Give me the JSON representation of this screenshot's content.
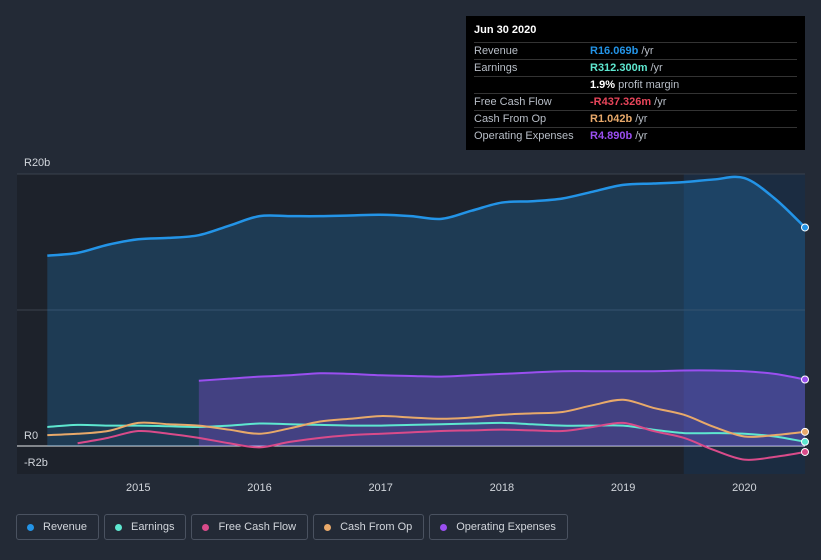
{
  "chart_data": {
    "type": "area",
    "title": "",
    "currency": "R",
    "x": [
      2014.25,
      2014.5,
      2014.75,
      2015.0,
      2015.25,
      2015.5,
      2015.75,
      2016.0,
      2016.25,
      2016.5,
      2016.75,
      2017.0,
      2017.25,
      2017.5,
      2017.75,
      2018.0,
      2018.25,
      2018.5,
      2018.75,
      2019.0,
      2019.25,
      2019.5,
      2019.75,
      2020.0,
      2020.25,
      2020.5
    ],
    "xlim": [
      2014.0,
      2020.5
    ],
    "ylim": [
      -2.0,
      20.0
    ],
    "y_ticks": [
      {
        "label": "R20b",
        "value": 20
      },
      {
        "label": "R0",
        "value": 0
      },
      {
        "label": "-R2b",
        "value": -2
      }
    ],
    "x_ticks": [
      "2015",
      "2016",
      "2017",
      "2018",
      "2019",
      "2020"
    ],
    "x_tick_values": [
      2015,
      2016,
      2017,
      2018,
      2019,
      2020
    ],
    "forecast_start": 2019.5,
    "series": [
      {
        "name": "Revenue",
        "color": "#2394e7",
        "fill": true,
        "x_start": 2014.25,
        "values": [
          14.0,
          14.2,
          14.8,
          15.2,
          15.3,
          15.5,
          16.2,
          16.9,
          16.9,
          16.9,
          16.95,
          17.0,
          16.9,
          16.7,
          17.3,
          17.9,
          18.0,
          18.2,
          18.7,
          19.2,
          19.3,
          19.4,
          19.6,
          19.7,
          18.2,
          16.07
        ]
      },
      {
        "name": "Operating Expenses",
        "color": "#9a4ff0",
        "fill": true,
        "x_start": 2015.5,
        "values": [
          null,
          null,
          null,
          null,
          null,
          4.8,
          4.95,
          5.1,
          5.2,
          5.35,
          5.3,
          5.2,
          5.15,
          5.1,
          5.2,
          5.3,
          5.4,
          5.5,
          5.5,
          5.5,
          5.5,
          5.55,
          5.55,
          5.5,
          5.3,
          4.89
        ]
      },
      {
        "name": "Earnings",
        "color": "#5ee7d0",
        "fill": false,
        "x_start": 2014.25,
        "values": [
          1.4,
          1.55,
          1.5,
          1.5,
          1.45,
          1.4,
          1.5,
          1.65,
          1.6,
          1.55,
          1.5,
          1.5,
          1.55,
          1.6,
          1.65,
          1.7,
          1.6,
          1.5,
          1.5,
          1.5,
          1.2,
          0.95,
          0.95,
          0.9,
          0.7,
          0.31
        ]
      },
      {
        "name": "Free Cash Flow",
        "color": "#d94b8a",
        "fill": false,
        "x_start": 2014.5,
        "values": [
          null,
          0.2,
          0.6,
          1.1,
          0.9,
          0.6,
          0.2,
          -0.1,
          0.3,
          0.6,
          0.8,
          0.9,
          1.0,
          1.1,
          1.15,
          1.2,
          1.15,
          1.1,
          1.4,
          1.7,
          1.1,
          0.6,
          -0.3,
          -1.0,
          -0.8,
          -0.44
        ]
      },
      {
        "name": "Cash From Op",
        "color": "#e8a96a",
        "fill": false,
        "x_start": 2014.25,
        "values": [
          0.8,
          0.9,
          1.1,
          1.7,
          1.6,
          1.5,
          1.2,
          0.9,
          1.3,
          1.8,
          2.0,
          2.2,
          2.1,
          2.0,
          2.1,
          2.3,
          2.4,
          2.5,
          3.0,
          3.4,
          2.8,
          2.3,
          1.4,
          0.7,
          0.8,
          1.04
        ]
      }
    ]
  },
  "tooltip": {
    "date": "Jun 30 2020",
    "rows": [
      {
        "label": "Revenue",
        "value": "R16.069b",
        "unit": "/yr",
        "color": "#2394e7"
      },
      {
        "label": "Earnings",
        "value": "R312.300m",
        "unit": "/yr",
        "color": "#5ee7d0"
      },
      {
        "label": "",
        "value": "1.9%",
        "unit": "profit margin",
        "color": "#ffffff"
      },
      {
        "label": "Free Cash Flow",
        "value": "-R437.326m",
        "unit": "/yr",
        "color": "#e8455a"
      },
      {
        "label": "Cash From Op",
        "value": "R1.042b",
        "unit": "/yr",
        "color": "#e8a96a"
      },
      {
        "label": "Operating Expenses",
        "value": "R4.890b",
        "unit": "/yr",
        "color": "#9a4ff0"
      }
    ]
  },
  "legend": [
    {
      "label": "Revenue",
      "color": "#2394e7"
    },
    {
      "label": "Earnings",
      "color": "#5ee7d0"
    },
    {
      "label": "Free Cash Flow",
      "color": "#d94b8a"
    },
    {
      "label": "Cash From Op",
      "color": "#e8a96a"
    },
    {
      "label": "Operating Expenses",
      "color": "#9a4ff0"
    }
  ]
}
